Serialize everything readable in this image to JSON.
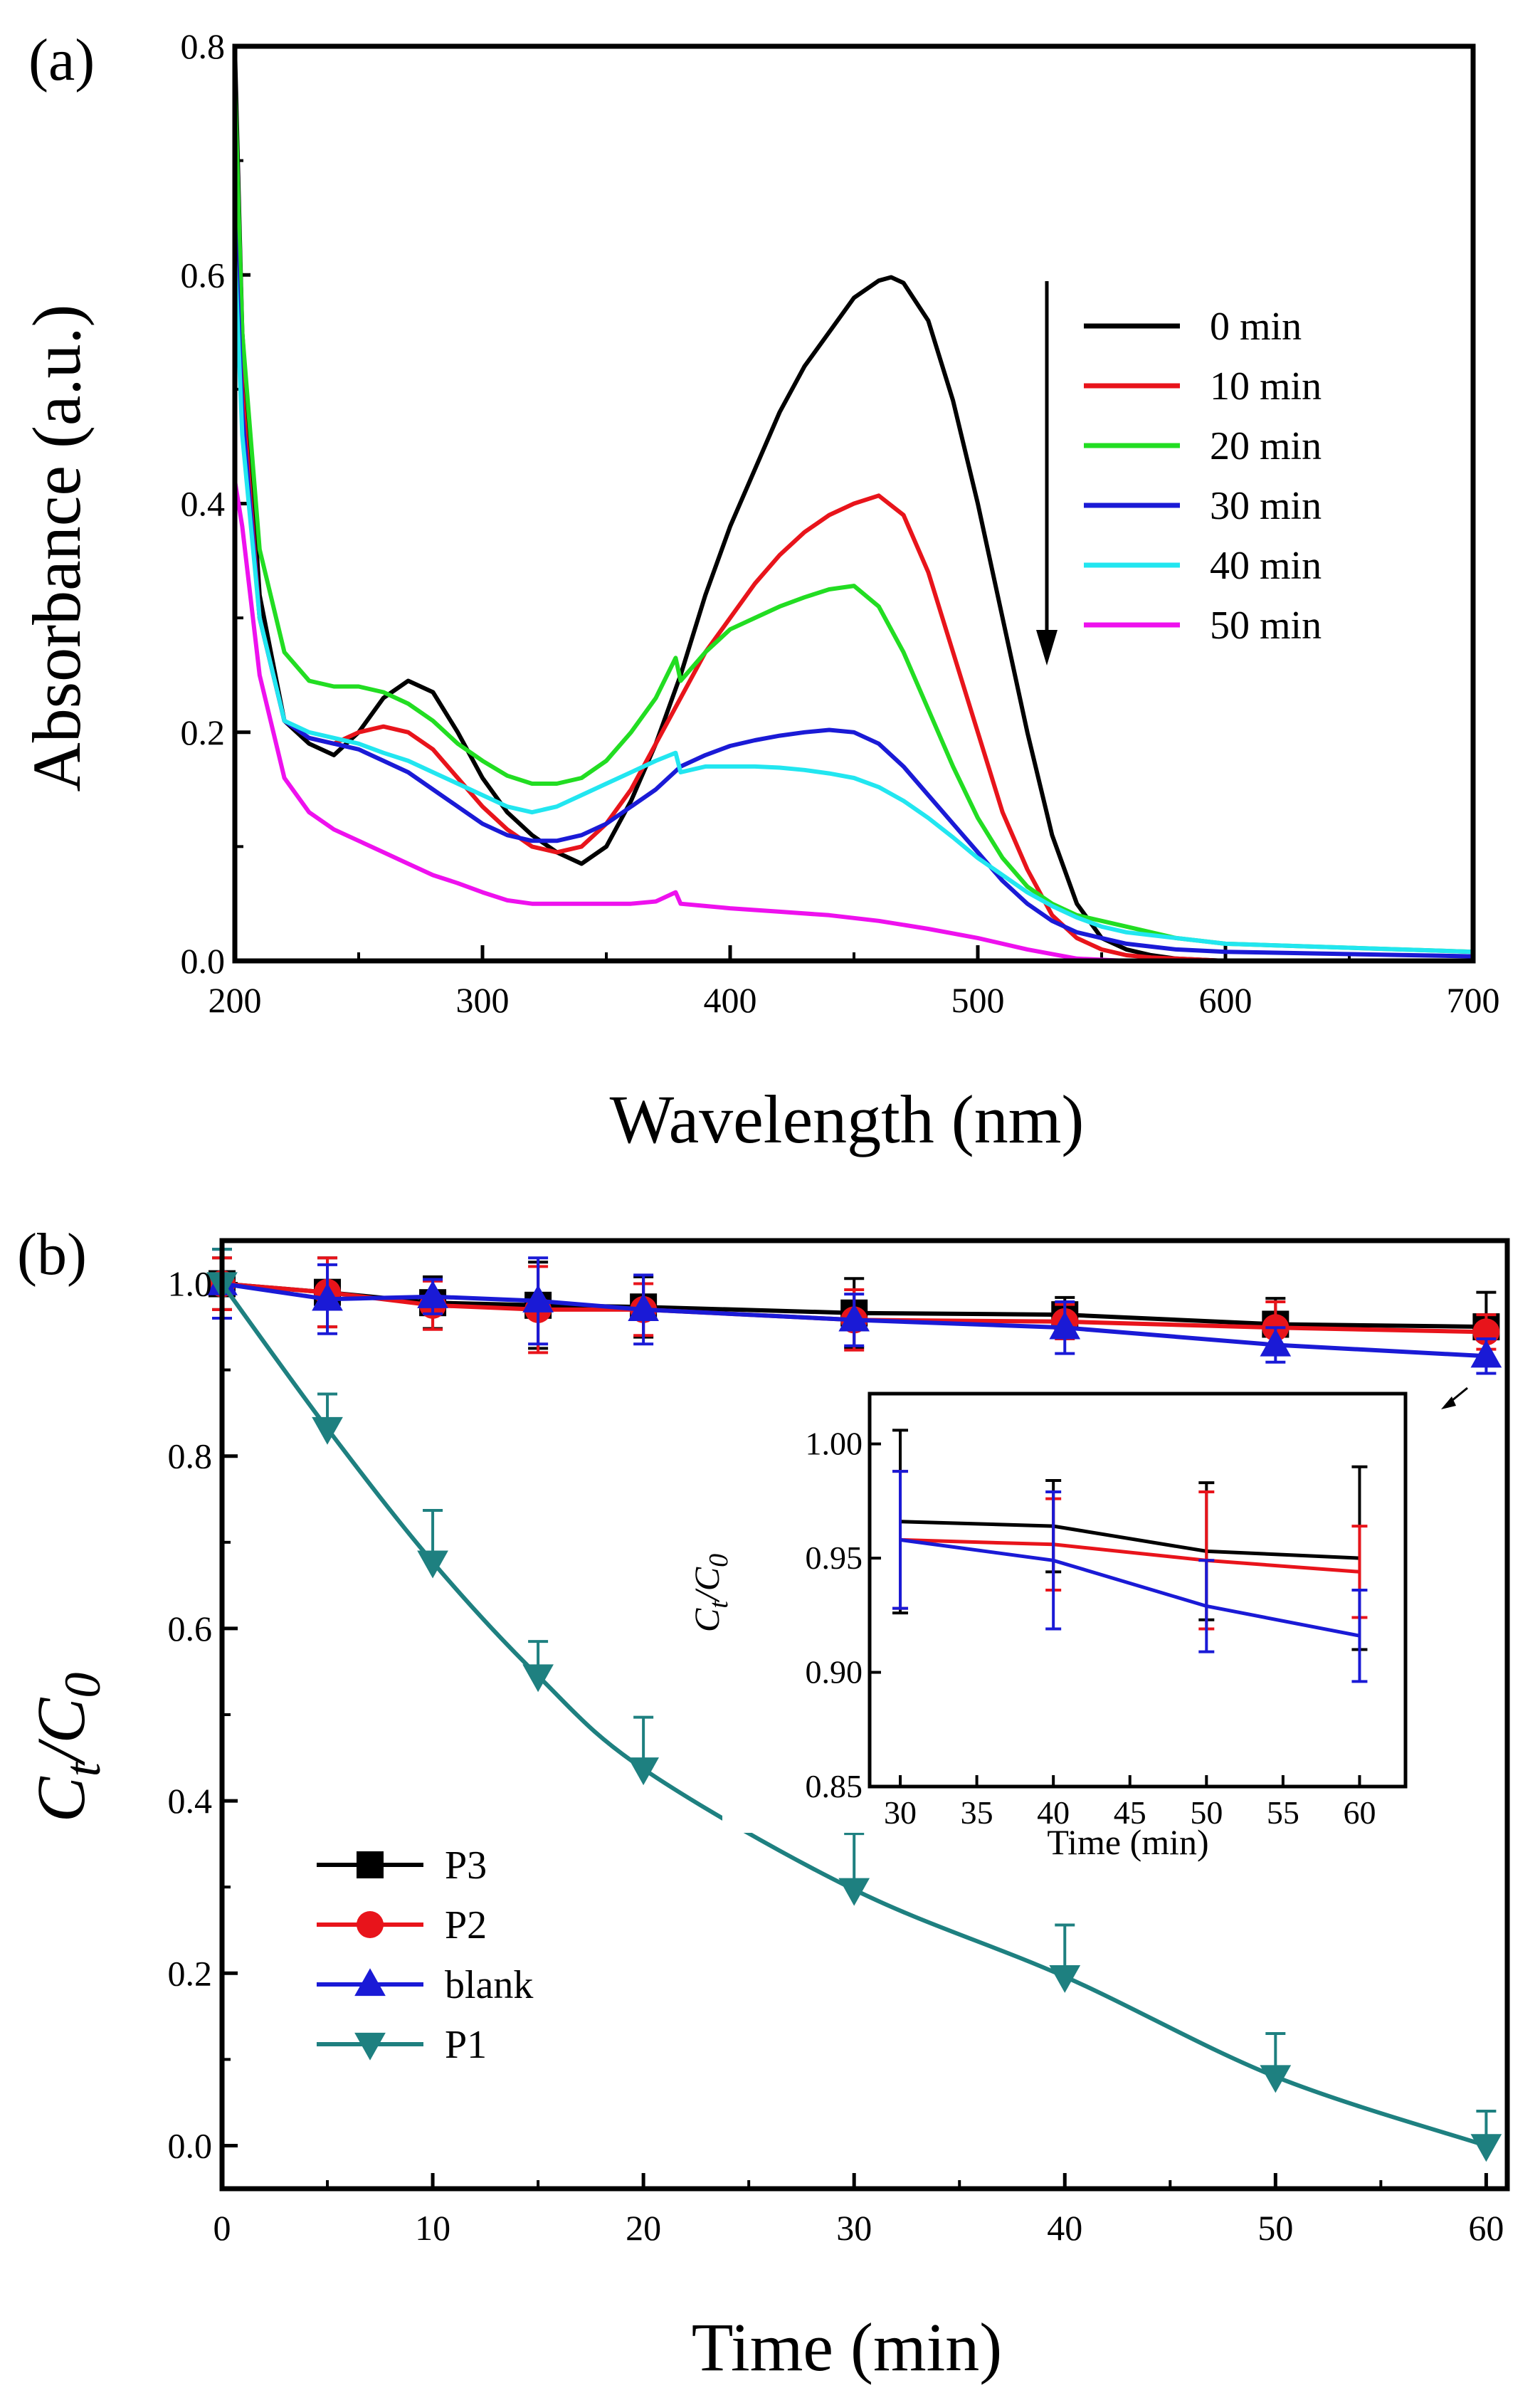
{
  "chart_data": [
    {
      "type": "line",
      "panel_label": "(a)",
      "xlabel": "Wavelength (nm)",
      "ylabel": "Absorbance (a.u.)",
      "xlim": [
        200,
        700
      ],
      "ylim": [
        0.0,
        0.8
      ],
      "xticks": [
        "200",
        "300",
        "400",
        "500",
        "600",
        "700"
      ],
      "yticks": [
        "0.0",
        "0.2",
        "0.4",
        "0.6",
        "0.8"
      ],
      "legend_position": "top-right",
      "annotation": "downward arrow indicating decreasing absorbance over time",
      "series": [
        {
          "name": "0 min",
          "color": "#000000",
          "x": [
            200,
            203,
            210,
            220,
            230,
            240,
            250,
            260,
            270,
            280,
            290,
            300,
            310,
            320,
            330,
            340,
            350,
            360,
            370,
            380,
            390,
            400,
            410,
            420,
            430,
            440,
            450,
            460,
            465,
            470,
            480,
            490,
            500,
            510,
            520,
            530,
            540,
            550,
            560,
            570,
            580,
            600,
            700
          ],
          "y": [
            0.8,
            0.55,
            0.32,
            0.21,
            0.19,
            0.18,
            0.2,
            0.23,
            0.245,
            0.235,
            0.2,
            0.16,
            0.13,
            0.11,
            0.095,
            0.085,
            0.1,
            0.14,
            0.19,
            0.25,
            0.32,
            0.38,
            0.43,
            0.48,
            0.52,
            0.55,
            0.58,
            0.595,
            0.598,
            0.593,
            0.56,
            0.49,
            0.4,
            0.3,
            0.2,
            0.11,
            0.05,
            0.02,
            0.01,
            0.005,
            0.002,
            0.0,
            0.0
          ]
        },
        {
          "name": "10 min",
          "color": "#e8141b",
          "x": [
            200,
            203,
            210,
            220,
            230,
            240,
            250,
            260,
            270,
            280,
            290,
            300,
            310,
            320,
            330,
            340,
            350,
            360,
            370,
            380,
            390,
            400,
            410,
            420,
            430,
            440,
            450,
            460,
            470,
            480,
            490,
            500,
            510,
            520,
            530,
            540,
            550,
            560,
            570,
            580,
            600,
            700
          ],
          "y": [
            0.72,
            0.5,
            0.3,
            0.21,
            0.195,
            0.19,
            0.2,
            0.205,
            0.2,
            0.185,
            0.16,
            0.135,
            0.115,
            0.1,
            0.095,
            0.1,
            0.12,
            0.15,
            0.19,
            0.23,
            0.27,
            0.3,
            0.33,
            0.355,
            0.375,
            0.39,
            0.4,
            0.407,
            0.39,
            0.34,
            0.27,
            0.2,
            0.13,
            0.08,
            0.04,
            0.02,
            0.01,
            0.005,
            0.003,
            0.002,
            0.0,
            0.0
          ]
        },
        {
          "name": "20 min",
          "color": "#22dd22",
          "x": [
            200,
            203,
            210,
            220,
            230,
            240,
            250,
            260,
            270,
            280,
            290,
            300,
            310,
            320,
            330,
            340,
            350,
            360,
            370,
            378,
            380,
            390,
            400,
            410,
            420,
            430,
            440,
            450,
            460,
            470,
            480,
            490,
            500,
            510,
            520,
            530,
            540,
            550,
            560,
            580,
            600,
            700
          ],
          "y": [
            0.77,
            0.55,
            0.36,
            0.27,
            0.245,
            0.24,
            0.24,
            0.235,
            0.225,
            0.21,
            0.19,
            0.175,
            0.162,
            0.155,
            0.155,
            0.16,
            0.175,
            0.2,
            0.23,
            0.265,
            0.245,
            0.27,
            0.29,
            0.3,
            0.31,
            0.318,
            0.325,
            0.328,
            0.31,
            0.27,
            0.22,
            0.17,
            0.125,
            0.09,
            0.065,
            0.05,
            0.04,
            0.035,
            0.03,
            0.02,
            0.015,
            0.008
          ]
        },
        {
          "name": "30 min",
          "color": "#1a1ad6",
          "x": [
            200,
            203,
            210,
            220,
            230,
            240,
            250,
            260,
            270,
            280,
            290,
            300,
            310,
            320,
            330,
            340,
            350,
            360,
            370,
            380,
            390,
            400,
            410,
            420,
            430,
            440,
            450,
            460,
            470,
            480,
            490,
            500,
            510,
            520,
            530,
            540,
            550,
            560,
            580,
            600,
            700
          ],
          "y": [
            0.65,
            0.48,
            0.3,
            0.21,
            0.195,
            0.19,
            0.185,
            0.175,
            0.165,
            0.15,
            0.135,
            0.12,
            0.11,
            0.105,
            0.105,
            0.11,
            0.12,
            0.135,
            0.15,
            0.17,
            0.18,
            0.188,
            0.193,
            0.197,
            0.2,
            0.202,
            0.2,
            0.19,
            0.17,
            0.145,
            0.12,
            0.095,
            0.07,
            0.05,
            0.035,
            0.025,
            0.02,
            0.015,
            0.01,
            0.008,
            0.004
          ]
        },
        {
          "name": "40 min",
          "color": "#22e6f0",
          "x": [
            200,
            203,
            210,
            220,
            230,
            240,
            250,
            260,
            270,
            280,
            290,
            300,
            310,
            320,
            330,
            340,
            350,
            360,
            370,
            378,
            380,
            390,
            400,
            410,
            420,
            430,
            440,
            450,
            460,
            470,
            480,
            490,
            500,
            510,
            520,
            530,
            540,
            550,
            560,
            580,
            600,
            700
          ],
          "y": [
            0.62,
            0.46,
            0.3,
            0.21,
            0.2,
            0.195,
            0.19,
            0.182,
            0.175,
            0.165,
            0.155,
            0.145,
            0.135,
            0.13,
            0.135,
            0.145,
            0.155,
            0.165,
            0.175,
            0.182,
            0.165,
            0.17,
            0.17,
            0.17,
            0.169,
            0.167,
            0.164,
            0.16,
            0.152,
            0.14,
            0.125,
            0.108,
            0.09,
            0.075,
            0.06,
            0.048,
            0.038,
            0.03,
            0.025,
            0.02,
            0.015,
            0.008
          ]
        },
        {
          "name": "50 min",
          "color": "#ee11ee",
          "x": [
            200,
            203,
            210,
            220,
            230,
            240,
            250,
            260,
            270,
            280,
            290,
            300,
            310,
            320,
            340,
            360,
            370,
            378,
            380,
            390,
            400,
            420,
            440,
            460,
            480,
            500,
            520,
            540,
            560,
            600,
            700
          ],
          "y": [
            0.42,
            0.38,
            0.25,
            0.16,
            0.13,
            0.115,
            0.105,
            0.095,
            0.085,
            0.075,
            0.068,
            0.06,
            0.053,
            0.05,
            0.05,
            0.05,
            0.052,
            0.06,
            0.05,
            0.048,
            0.046,
            0.043,
            0.04,
            0.035,
            0.028,
            0.02,
            0.01,
            0.002,
            0.0,
            0.0,
            0.0
          ]
        }
      ]
    },
    {
      "type": "line",
      "panel_label": "(b)",
      "xlabel": "Time (min)",
      "ylabel": "Ct/C0",
      "xlim": [
        0,
        61
      ],
      "ylim": [
        -0.05,
        1.05
      ],
      "xticks": [
        "0",
        "10",
        "20",
        "30",
        "40",
        "50",
        "60"
      ],
      "yticks": [
        "0.0",
        "0.2",
        "0.4",
        "0.6",
        "0.8",
        "1.0"
      ],
      "legend_position": "bottom-left",
      "series": [
        {
          "name": "P3",
          "color": "#000000",
          "marker": "square",
          "x": [
            0,
            5,
            10,
            15,
            20,
            30,
            40,
            50,
            60
          ],
          "y": [
            1.0,
            0.99,
            0.978,
            0.975,
            0.973,
            0.966,
            0.964,
            0.953,
            0.95
          ],
          "err": [
            0.03,
            0.04,
            0.03,
            0.05,
            0.035,
            0.04,
            0.02,
            0.03,
            0.04
          ]
        },
        {
          "name": "P2",
          "color": "#e8141b",
          "marker": "circle",
          "x": [
            0,
            5,
            10,
            15,
            20,
            30,
            40,
            50,
            60
          ],
          "y": [
            1.0,
            0.99,
            0.975,
            0.97,
            0.97,
            0.958,
            0.956,
            0.949,
            0.944
          ],
          "err": [
            0.03,
            0.04,
            0.028,
            0.05,
            0.03,
            0.035,
            0.02,
            0.03,
            0.02
          ]
        },
        {
          "name": "blank",
          "color": "#1a1ad6",
          "marker": "triangle-up",
          "x": [
            0,
            5,
            10,
            15,
            20,
            30,
            40,
            50,
            60
          ],
          "y": [
            1.0,
            0.982,
            0.985,
            0.98,
            0.97,
            0.958,
            0.949,
            0.929,
            0.916
          ],
          "err": [
            0.04,
            0.04,
            0.02,
            0.05,
            0.04,
            0.03,
            0.03,
            0.02,
            0.02
          ]
        },
        {
          "name": "P1",
          "color": "#1e8080",
          "marker": "triangle-down",
          "x": [
            0,
            5,
            10,
            15,
            20,
            30,
            40,
            50,
            60
          ],
          "y": [
            1.0,
            0.832,
            0.677,
            0.545,
            0.437,
            0.297,
            0.196,
            0.08,
            0.0
          ],
          "err": [
            0.04,
            0.04,
            0.06,
            0.04,
            0.06,
            0.065,
            0.06,
            0.05,
            0.04
          ]
        }
      ],
      "inset": {
        "xlabel": "Time (min)",
        "ylabel": "Ct/C0",
        "xlim": [
          28,
          63
        ],
        "ylim": [
          0.85,
          1.022
        ],
        "xticks": [
          "30",
          "35",
          "40",
          "45",
          "50",
          "55",
          "60"
        ],
        "yticks": [
          "0.85",
          "0.90",
          "0.95",
          "1.00"
        ],
        "series": [
          {
            "name": "P3",
            "color": "#000000",
            "x": [
              30,
              40,
              50,
              60
            ],
            "y": [
              0.966,
              0.964,
              0.953,
              0.95
            ],
            "err": [
              0.04,
              0.02,
              0.03,
              0.04
            ]
          },
          {
            "name": "P2",
            "color": "#e8141b",
            "x": [
              30,
              40,
              50,
              60
            ],
            "y": [
              0.958,
              0.956,
              0.949,
              0.944
            ],
            "err": [
              0.03,
              0.02,
              0.03,
              0.02
            ]
          },
          {
            "name": "blank",
            "color": "#1a1ad6",
            "x": [
              30,
              40,
              50,
              60
            ],
            "y": [
              0.958,
              0.949,
              0.929,
              0.916
            ],
            "err": [
              0.03,
              0.03,
              0.02,
              0.02
            ]
          }
        ]
      }
    }
  ]
}
